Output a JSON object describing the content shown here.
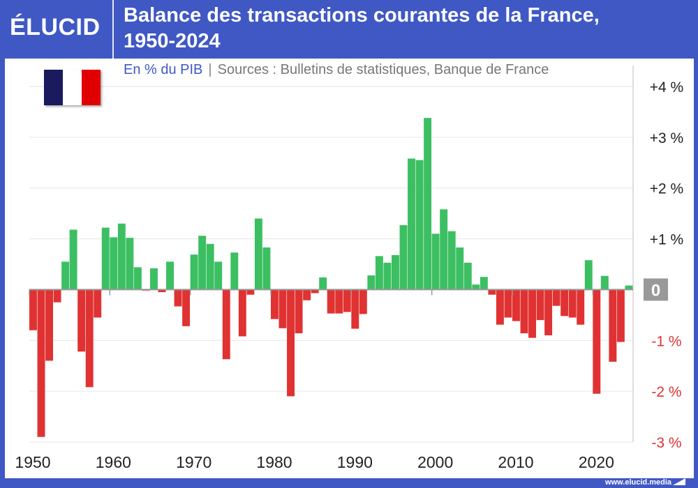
{
  "header": {
    "logo": "ÉLUCID",
    "title_line1": "Balance des transactions courantes de la France,",
    "title_line2": "1950-2024"
  },
  "subtitle": {
    "unit": "En % du PIB",
    "separator": "|",
    "sources": "Sources : Bulletins de statistiques, Banque de France"
  },
  "footer": {
    "url": "www.elucid.media"
  },
  "flag": {
    "colors": [
      "#1a1a5e",
      "#ffffff",
      "#e00000"
    ]
  },
  "colors": {
    "positive": "#3cbf62",
    "negative": "#e03232",
    "frame": "#3f58c4",
    "zero_label_bg": "#999999",
    "negative_label": "#e03232",
    "positive_label": "#222222"
  },
  "chart_data": {
    "type": "bar",
    "title": "Balance des transactions courantes de la France, 1950-2024",
    "ylabel": "En % du PIB",
    "ylim": [
      -3,
      4
    ],
    "grid": true,
    "y_ticks": [
      {
        "v": 4,
        "label": "+4 %"
      },
      {
        "v": 3,
        "label": "+3 %"
      },
      {
        "v": 2,
        "label": "+2 %"
      },
      {
        "v": 1,
        "label": "+1 %"
      },
      {
        "v": 0,
        "label": "0"
      },
      {
        "v": -1,
        "label": "-1 %"
      },
      {
        "v": -2,
        "label": "-2 %"
      },
      {
        "v": -3,
        "label": "-3 %"
      }
    ],
    "x_ticks": [
      "1950",
      "1960",
      "1970",
      "1980",
      "1990",
      "2000",
      "2010",
      "2020"
    ],
    "years": [
      1950,
      1951,
      1952,
      1953,
      1954,
      1955,
      1956,
      1957,
      1958,
      1959,
      1960,
      1961,
      1962,
      1963,
      1964,
      1965,
      1966,
      1967,
      1968,
      1969,
      1970,
      1971,
      1972,
      1973,
      1974,
      1975,
      1976,
      1977,
      1978,
      1979,
      1980,
      1981,
      1982,
      1983,
      1984,
      1985,
      1986,
      1987,
      1988,
      1989,
      1990,
      1991,
      1992,
      1993,
      1994,
      1995,
      1996,
      1997,
      1998,
      1999,
      2000,
      2001,
      2002,
      2003,
      2004,
      2005,
      2006,
      2007,
      2008,
      2009,
      2010,
      2011,
      2012,
      2013,
      2014,
      2015,
      2016,
      2017,
      2018,
      2019,
      2020,
      2021,
      2022,
      2023,
      2024
    ],
    "values": [
      -0.8,
      -2.9,
      -1.4,
      -0.25,
      0.55,
      1.18,
      -1.22,
      -1.92,
      -0.55,
      1.22,
      1.03,
      1.3,
      1.02,
      0.44,
      -0.02,
      0.42,
      -0.05,
      0.55,
      -0.33,
      -0.72,
      0.69,
      1.06,
      0.9,
      0.55,
      -1.37,
      0.73,
      -0.92,
      -0.1,
      1.4,
      0.83,
      -0.58,
      -0.76,
      -2.1,
      -0.86,
      -0.21,
      -0.07,
      0.24,
      -0.47,
      -0.47,
      -0.44,
      -0.77,
      -0.48,
      0.28,
      0.66,
      0.53,
      0.68,
      1.27,
      2.58,
      2.55,
      3.38,
      1.1,
      1.58,
      1.15,
      0.83,
      0.53,
      0.1,
      0.25,
      -0.1,
      -0.69,
      -0.55,
      -0.62,
      -0.86,
      -0.95,
      -0.6,
      -0.9,
      -0.32,
      -0.52,
      -0.55,
      -0.69,
      0.58,
      -2.05,
      0.27,
      -1.42,
      -1.03,
      0.08
    ]
  }
}
